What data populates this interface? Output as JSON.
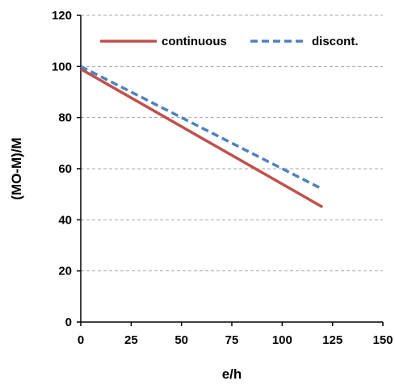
{
  "chart_data": {
    "type": "line",
    "xlabel": "e/h",
    "ylabel": "(MO-M)/M",
    "xlim": [
      0,
      150
    ],
    "ylim": [
      0,
      120
    ],
    "xticks": [
      0,
      25,
      50,
      75,
      100,
      125,
      150
    ],
    "yticks": [
      0,
      20,
      40,
      60,
      80,
      100,
      120
    ],
    "grid": "horizontal dashed",
    "legend_position": "top",
    "series": [
      {
        "name": "continuous",
        "color": "#c0504d",
        "style": "solid",
        "x": [
          0,
          120
        ],
        "y": [
          99,
          45
        ]
      },
      {
        "name": "discont.",
        "color": "#4f81bd",
        "style": "dashed",
        "x": [
          0,
          120
        ],
        "y": [
          100,
          52
        ]
      }
    ]
  }
}
